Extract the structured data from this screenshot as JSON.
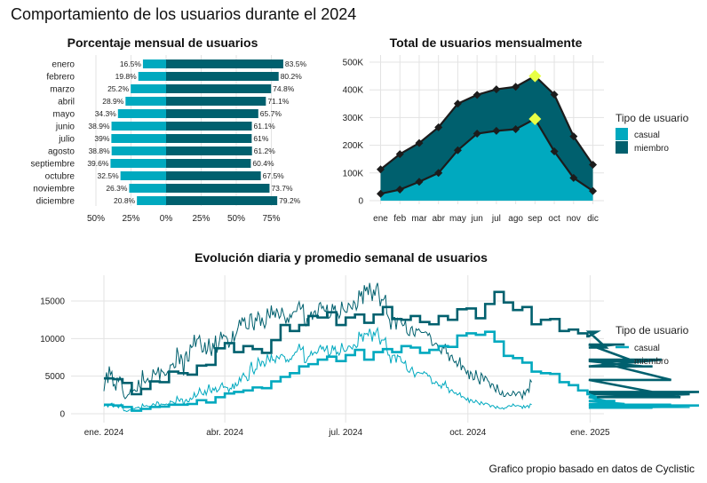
{
  "title": "Comportamiento de los usuarios durante el 2024",
  "caption": "Grafico propio basado en datos de Cyclistic",
  "colors": {
    "casual": "#00A9BF",
    "miembro": "#00606E",
    "highlight": "#E8FF45",
    "grid": "#E3E3E3",
    "zero_line": "#CFCFCF"
  },
  "chart_data": [
    {
      "type": "bar",
      "title": "Porcentaje mensual de usuarios",
      "orientation": "horizontal-diverging",
      "categories": [
        "enero",
        "febrero",
        "marzo",
        "abril",
        "mayo",
        "junio",
        "julio",
        "agosto",
        "septiembre",
        "octubre",
        "noviembre",
        "diciembre"
      ],
      "series": [
        {
          "name": "casual",
          "values": [
            16.5,
            19.8,
            25.2,
            28.9,
            34.3,
            38.9,
            39,
            38.8,
            39.6,
            32.5,
            26.3,
            20.8
          ],
          "labels": [
            "16.5%",
            "19.8%",
            "25.2%",
            "28.9%",
            "34.3%",
            "38.9%",
            "39%",
            "38.8%",
            "39.6%",
            "32.5%",
            "26.3%",
            "20.8%"
          ]
        },
        {
          "name": "miembro",
          "values": [
            83.5,
            80.2,
            74.8,
            71.1,
            65.7,
            61.1,
            61,
            61.2,
            60.4,
            67.5,
            73.7,
            79.2
          ],
          "labels": [
            "83.5%",
            "80.2%",
            "74.8%",
            "71.1%",
            "65.7%",
            "61.1%",
            "61%",
            "61.2%",
            "60.4%",
            "67.5%",
            "73.7%",
            "79.2%"
          ]
        }
      ],
      "xticks": [
        "50%",
        "25%",
        "0%",
        "25%",
        "50%",
        "75%"
      ],
      "xlim": [
        -55,
        95
      ]
    },
    {
      "type": "area",
      "title": "Total de usuarios mensualmente",
      "stacked": true,
      "categories": [
        "ene",
        "feb",
        "mar",
        "abr",
        "may",
        "jun",
        "jul",
        "ago",
        "sep",
        "oct",
        "nov",
        "dic"
      ],
      "series": [
        {
          "name": "casual",
          "values": [
            25000,
            40000,
            68000,
            100000,
            182000,
            242000,
            252000,
            258000,
            295000,
            178000,
            82000,
            35000
          ]
        },
        {
          "name": "miembro",
          "values": [
            88000,
            128000,
            140000,
            165000,
            168000,
            140000,
            150000,
            153000,
            155000,
            205000,
            150000,
            95000
          ]
        }
      ],
      "totals": [
        113000,
        168000,
        208000,
        265000,
        350000,
        382000,
        402000,
        411000,
        450000,
        383000,
        232000,
        130000
      ],
      "highlight_month": "sep",
      "yticks": [
        "0",
        "100K",
        "200K",
        "300K",
        "400K",
        "500K"
      ],
      "ylim": [
        0,
        520000
      ],
      "legend": {
        "title": "Tipo de usuario",
        "entries": [
          "casual",
          "miembro"
        ],
        "position": "right"
      }
    },
    {
      "type": "line",
      "title": "Evolución diaria y promedio semanal de usuarios",
      "x_range": [
        "2024-01-01",
        "2024-12-31"
      ],
      "xticks": [
        "ene. 2024",
        "abr. 2024",
        "jul. 2024",
        "oct. 2024",
        "ene. 2025"
      ],
      "yticks": [
        "0",
        "5000",
        "10000",
        "15000"
      ],
      "ylim": [
        -800,
        18500
      ],
      "weekly_avg_casual": [
        1200,
        1100,
        900,
        400,
        650,
        900,
        950,
        1200,
        1200,
        1300,
        1800,
        1500,
        2200,
        2700,
        2900,
        3100,
        3500,
        3400,
        4300,
        4900,
        5400,
        6300,
        6600,
        7200,
        7600,
        7000,
        7800,
        8500,
        7200,
        8200,
        8600,
        8200,
        9000,
        8800,
        8100,
        8500,
        9000,
        8900,
        10400,
        10700,
        10500,
        10900,
        9600,
        7700,
        7400,
        6800,
        5600,
        5400,
        5300,
        4200,
        3800,
        3100,
        2600,
        2200,
        1700,
        1700,
        1300,
        1200,
        800,
        800,
        900,
        1200,
        1000,
        900,
        1100
      ],
      "weekly_avg_miembro": [
        4700,
        4600,
        4100,
        2600,
        3300,
        4300,
        4200,
        5600,
        5400,
        5200,
        6400,
        6500,
        8700,
        9400,
        8200,
        9000,
        8600,
        8100,
        9800,
        11800,
        11000,
        11800,
        13000,
        12800,
        13500,
        11800,
        12800,
        13200,
        12100,
        13200,
        14200,
        12600,
        12500,
        13000,
        12200,
        11900,
        13000,
        12500,
        13900,
        14000,
        12700,
        14600,
        16200,
        14800,
        13800,
        14200,
        11900,
        12500,
        12600,
        11000,
        11200,
        10700,
        10300,
        10900,
        8800,
        9200,
        9200,
        7000,
        6300,
        6300,
        7200,
        4500,
        2200,
        2600,
        2900
      ],
      "daily_casual": [
        1000,
        1100,
        1200,
        900,
        1200,
        1300,
        1400,
        900,
        1000,
        1000,
        1000,
        800,
        1100,
        1300,
        1000,
        400,
        400,
        300,
        350,
        500,
        500,
        450,
        700,
        650,
        800,
        800,
        900,
        700,
        650,
        1300,
        1000,
        1000,
        1100,
        1000,
        950,
        950,
        1100,
        1350,
        1200,
        1100,
        1600,
        1500,
        1000,
        1300,
        1250,
        1250,
        1200,
        1300,
        1200,
        1150,
        1700,
        1600,
        1550,
        1400,
        1400,
        2300,
        1900,
        1650,
        2000,
        1950,
        1100,
        1700,
        1900,
        1600,
        1600,
        2100,
        1900,
        2100,
        2800,
        2200,
        2400,
        2700,
        3400,
        2900,
        2600,
        2500,
        3100,
        2500,
        3100,
        3900,
        3100,
        2800,
        3400,
        3100,
        3500,
        2900,
        3100,
        3300,
        3800,
        4100,
        3500,
        3600,
        3500,
        3500,
        2900,
        3400,
        3300,
        4000,
        3300,
        4100,
        3700,
        3900,
        4800,
        4300,
        5000,
        5400,
        5000,
        4900,
        4400,
        4500,
        6200,
        6900,
        5700,
        5300,
        5900,
        5900,
        7400,
        7000,
        6300,
        7000,
        6900,
        6300,
        6700,
        7900,
        7300,
        6900,
        7900,
        7100,
        7200,
        6800,
        7700,
        7500,
        7300,
        7800,
        7900,
        7700,
        7600,
        6900,
        7200,
        6900,
        7300,
        7200,
        7700,
        7800,
        8200,
        8200,
        8600,
        9300,
        8500,
        8600,
        8900,
        6800,
        6800,
        7200,
        7600,
        7700,
        8300,
        7800,
        8100,
        8200,
        8000,
        8200,
        8800,
        9100,
        8600,
        8900,
        8300,
        8600,
        9100,
        7800,
        7800,
        8100,
        9100,
        8500,
        8900,
        7900,
        8200,
        7800,
        8200,
        9400,
        8700,
        8300,
        8300,
        8500,
        9000,
        9000,
        8800,
        8600,
        9200,
        9100,
        8800,
        9000,
        10900,
        10300,
        10600,
        9600,
        10700,
        10600,
        10700,
        10400,
        11300,
        10700,
        9600,
        10900,
        10400,
        11000,
        11400,
        10200,
        9200,
        9800,
        9800,
        9800,
        10100,
        8500,
        7800,
        7800,
        6700,
        7700,
        7800,
        7800,
        6800,
        7800,
        7600,
        7600,
        6900,
        6800,
        6700,
        7000,
        5900,
        5600,
        5500,
        5900,
        6200,
        5500,
        4900,
        5300,
        5500,
        5500,
        5400,
        5400,
        5300,
        5600,
        5400,
        5400,
        5000,
        5100,
        4800,
        4000,
        4100,
        4000,
        4300,
        4100,
        3700,
        3800,
        3400,
        4000,
        3800,
        4300,
        3500,
        3500,
        2800,
        3100,
        3200,
        2900,
        2700,
        2800,
        2500,
        2600,
        2800,
        2200,
        2300,
        2200,
        2000,
        1800,
        2100,
        1500,
        1900,
        1800,
        1500,
        1500,
        1800,
        1600,
        1400,
        1200,
        1600,
        1400,
        1200,
        1400,
        1400,
        1300,
        1200,
        900,
        1100,
        1100,
        900,
        700,
        1000,
        800,
        700,
        700,
        800,
        600,
        800,
        800,
        1000,
        1100,
        1000,
        1000,
        1300,
        1100,
        1000,
        1100,
        1100,
        1000,
        1000,
        700,
        1100,
        800,
        1000,
        1100,
        800,
        1300,
        1200
      ],
      "daily_miembro": [
        3000,
        4400,
        5500,
        4100,
        6300,
        5200,
        5600,
        3700,
        3900,
        3100,
        4800,
        4300,
        4900,
        4600,
        3200,
        2300,
        2000,
        2200,
        2500,
        2600,
        3200,
        2700,
        3100,
        3200,
        3000,
        3000,
        4500,
        3600,
        3300,
        5800,
        4400,
        4100,
        4400,
        4700,
        4200,
        4100,
        4500,
        5900,
        5400,
        5200,
        5500,
        6200,
        4500,
        5900,
        5600,
        5500,
        5100,
        5200,
        5600,
        5400,
        6500,
        6500,
        6700,
        6100,
        6200,
        8800,
        7900,
        6600,
        7900,
        7200,
        5100,
        7700,
        8300,
        7000,
        7000,
        9200,
        8800,
        9000,
        10500,
        8900,
        9900,
        10000,
        10400,
        9200,
        8200,
        8300,
        9500,
        7900,
        8500,
        10000,
        8500,
        7700,
        9400,
        8600,
        10400,
        8100,
        8800,
        9700,
        10900,
        10000,
        10500,
        10300,
        10300,
        9900,
        8800,
        9300,
        9300,
        11000,
        9600,
        10300,
        10800,
        11500,
        12500,
        11700,
        12800,
        12300,
        12700,
        11400,
        11300,
        11300,
        13200,
        13300,
        11700,
        11100,
        12800,
        12300,
        13500,
        13100,
        11700,
        12800,
        12000,
        11400,
        12000,
        14000,
        13200,
        12700,
        14400,
        13100,
        13600,
        12800,
        14000,
        13500,
        12700,
        13000,
        14100,
        13400,
        12800,
        12000,
        12800,
        12100,
        13200,
        12800,
        13400,
        13600,
        13600,
        13600,
        14400,
        14900,
        13900,
        14100,
        14600,
        11900,
        11700,
        12700,
        12700,
        12900,
        13600,
        12500,
        13500,
        13700,
        12900,
        13300,
        14600,
        14800,
        14000,
        14300,
        13700,
        13600,
        14500,
        12700,
        12800,
        13200,
        14600,
        13800,
        14400,
        12800,
        13300,
        12700,
        13200,
        14900,
        14000,
        13700,
        13500,
        13500,
        14700,
        14500,
        14100,
        13900,
        15000,
        14700,
        13800,
        14300,
        16400,
        15600,
        16300,
        14600,
        17100,
        16300,
        16900,
        15800,
        17400,
        16300,
        15000,
        16500,
        15700,
        16900,
        17400,
        16000,
        14300,
        15200,
        15100,
        15300,
        15800,
        13300,
        12900,
        12500,
        11200,
        12700,
        12800,
        12800,
        11200,
        12700,
        12500,
        12700,
        12100,
        11700,
        11800,
        12400,
        10800,
        10500,
        10400,
        11400,
        11600,
        10600,
        10300,
        11300,
        11100,
        11300,
        11000,
        10800,
        10800,
        10800,
        10900,
        10800,
        10400,
        10700,
        10200,
        9100,
        9100,
        9300,
        9400,
        9200,
        8500,
        8400,
        8000,
        9000,
        8700,
        9300,
        8000,
        8100,
        7000,
        7700,
        7800,
        7100,
        6800,
        7000,
        6300,
        6700,
        7500,
        5800,
        6400,
        6200,
        5800,
        5300,
        5800,
        4600,
        5600,
        5300,
        4500,
        4600,
        5800,
        5000,
        4400,
        3900,
        5400,
        5100,
        4300,
        5000,
        4800,
        4400,
        4200,
        3500,
        4000,
        3900,
        3300,
        2900,
        3900,
        3200,
        2600,
        2500,
        3000,
        2300,
        2300,
        2600,
        2800,
        2500,
        2400,
        2500,
        3000,
        2800,
        2400,
        2700,
        2900,
        2900,
        2500,
        2000,
        3000,
        2500,
        3100,
        3300,
        2900,
        4500,
        4200
      ],
      "legend": {
        "title": "Tipo de usuario",
        "entries": [
          "casual",
          "miembro"
        ],
        "position": "right"
      }
    }
  ]
}
